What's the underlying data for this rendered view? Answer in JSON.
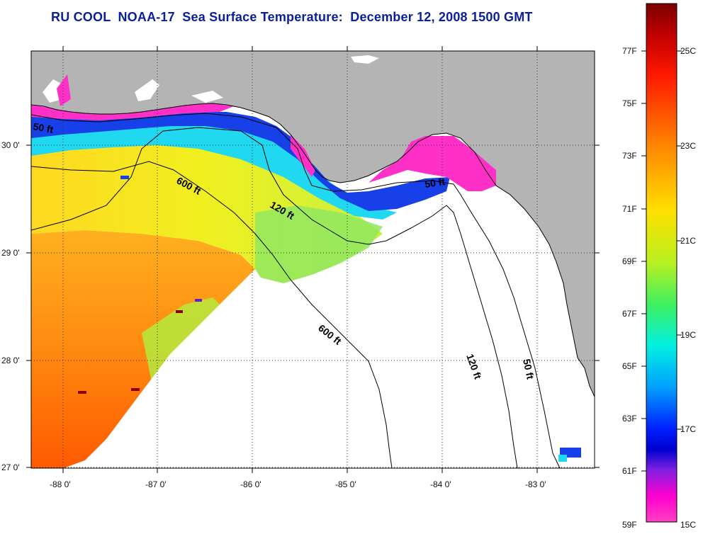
{
  "title": "RU COOL  NOAA-17  Sea Surface Temperature:  December 12, 2008 1500 GMT",
  "map": {
    "lon_labels": [
      "-88 0'",
      "-87 0'",
      "-86 0'",
      "-85 0'",
      "-84 0'",
      "-83 0'"
    ],
    "lat_labels": [
      "30 0'",
      "29 0'",
      "28 0'",
      "27 0'"
    ],
    "contour_labels": [
      {
        "text": "50 ft"
      },
      {
        "text": "600 ft"
      },
      {
        "text": "120 ft"
      },
      {
        "text": "50 ft"
      },
      {
        "text": "600 ft"
      },
      {
        "text": "120 ft"
      },
      {
        "text": "50 ft"
      }
    ]
  },
  "colorbar": {
    "fahrenheit_labels": [
      "77F",
      "75F",
      "73F",
      "71F",
      "69F",
      "67F",
      "65F",
      "63F",
      "61F",
      "59F"
    ],
    "celsius_labels": [
      "25C",
      "23C",
      "21C",
      "19C",
      "17C",
      "15C"
    ]
  },
  "colors": {
    "title": "#0a1f9a",
    "land": "#b4b4b4",
    "no_data": "#ffffff"
  }
}
